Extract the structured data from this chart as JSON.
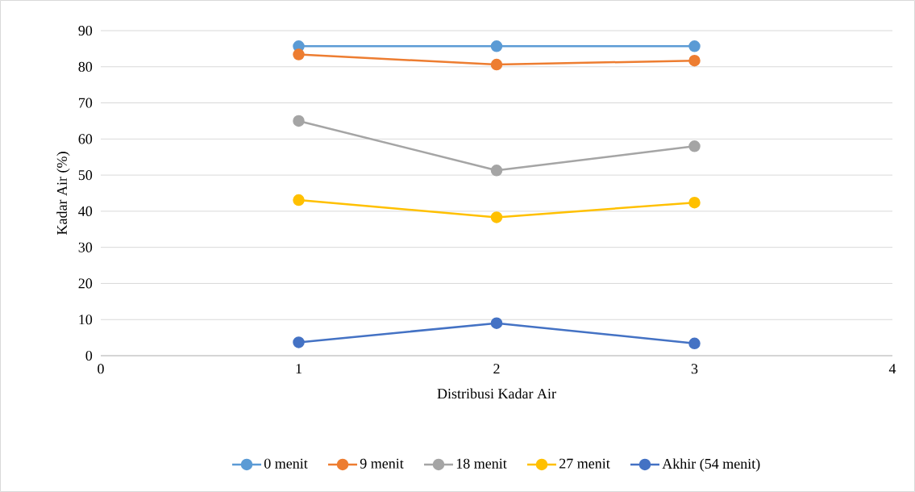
{
  "chart_data": {
    "type": "line",
    "xlabel": "Distribusi Kadar Air",
    "ylabel": "Kadar Air (%)",
    "x": [
      1,
      2,
      3
    ],
    "series": [
      {
        "name": "0 menit",
        "color": "#5b9bd5",
        "values": [
          85.7,
          85.7,
          85.7
        ]
      },
      {
        "name": "9 menit",
        "color": "#ed7d31",
        "values": [
          83.4,
          80.6,
          81.7
        ]
      },
      {
        "name": "18 menit",
        "color": "#a5a5a5",
        "values": [
          65.0,
          51.3,
          58.0
        ]
      },
      {
        "name": "27 menit",
        "color": "#ffc000",
        "values": [
          43.1,
          38.3,
          42.4
        ]
      },
      {
        "name": "Akhir (54 menit)",
        "color": "#4472c4",
        "values": [
          3.7,
          9.0,
          3.4
        ]
      }
    ],
    "xlim": [
      0,
      4
    ],
    "xticks": [
      0,
      1,
      2,
      3,
      4
    ],
    "ylim": [
      0,
      90
    ],
    "yticks": [
      0,
      10,
      20,
      30,
      40,
      50,
      60,
      70,
      80,
      90
    ],
    "grid": "y",
    "legend": "bottom",
    "marker": "circle",
    "line_style": "solid"
  }
}
